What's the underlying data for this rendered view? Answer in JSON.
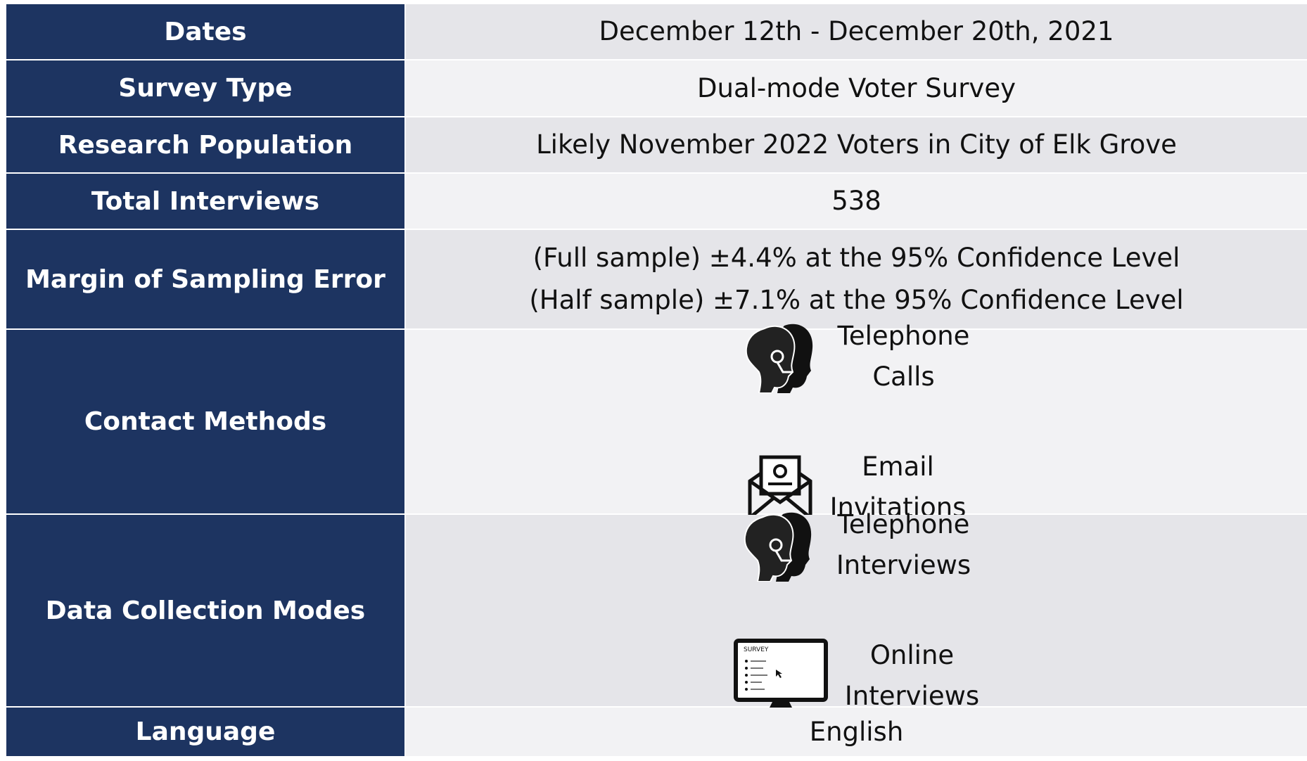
{
  "rows": [
    {
      "label": "Dates",
      "value": "December 12th - December 20th, 2021"
    },
    {
      "label": "Survey Type",
      "value": "Dual-mode Voter Survey"
    },
    {
      "label": "Research Population",
      "value": "Likely November 2022 Voters in City of Elk Grove"
    },
    {
      "label": "Total Interviews",
      "value": "538"
    },
    {
      "label": "Margin of Sampling Error",
      "lines": [
        "(Full sample) ±4.4% at the 95% Confidence Level",
        "(Half sample) ±7.1% at the 95% Confidence Level"
      ]
    },
    {
      "label": "Contact Methods",
      "items": [
        {
          "lines": [
            "Telephone",
            "Calls"
          ]
        },
        {
          "lines": [
            "Email",
            "Invitations"
          ]
        }
      ]
    },
    {
      "label": "Data Collection Modes",
      "items": [
        {
          "lines": [
            "Telephone",
            "Interviews"
          ]
        },
        {
          "lines": [
            "Online",
            "Interviews"
          ],
          "screen_text": "SURVEY"
        }
      ]
    },
    {
      "label": "Language",
      "value": "English"
    }
  ]
}
